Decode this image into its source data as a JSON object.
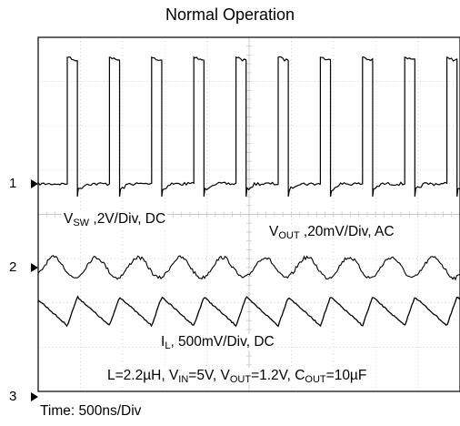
{
  "title": "Normal Operation",
  "footer": "Time: 500ns/Div",
  "channels": [
    {
      "marker": "1",
      "label_main": "V",
      "label_sub": "SW",
      "label_rest": " ,2V/Div, DC"
    },
    {
      "marker": "2",
      "label_main": "V",
      "label_sub": "OUT",
      "label_rest": " ,20mV/Div, AC"
    },
    {
      "marker": "3",
      "label_main": "I",
      "label_sub": "L",
      "label_rest": ", 500mV/Div, DC"
    }
  ],
  "conditions": {
    "p1": "L=2.2µH, V",
    "s1": "IN",
    "p2": "=5V, V",
    "s2": "OUT",
    "p3": "=1.2V, C",
    "s3": "OUT",
    "p4": "=10µF"
  },
  "chart_data": {
    "type": "line",
    "title": "Normal Operation",
    "xlabel": "Time: 500ns/Div",
    "x_divisions": 10,
    "y_divisions": 8,
    "time_per_div_ns": 500,
    "switching_period_divisions": 1.0,
    "series": [
      {
        "name": "V_SW",
        "scale": "2V/Div",
        "coupling": "DC",
        "shape": "square-wave",
        "low_div": 0.0,
        "high_div": 2.8,
        "duty_cycle": 0.24
      },
      {
        "name": "V_OUT",
        "scale": "20mV/Div",
        "coupling": "AC",
        "shape": "ripple",
        "amplitude_div": 0.12
      },
      {
        "name": "I_L",
        "scale": "500mV/Div",
        "coupling": "DC",
        "shape": "triangle",
        "amplitude_div": 0.5
      }
    ]
  }
}
